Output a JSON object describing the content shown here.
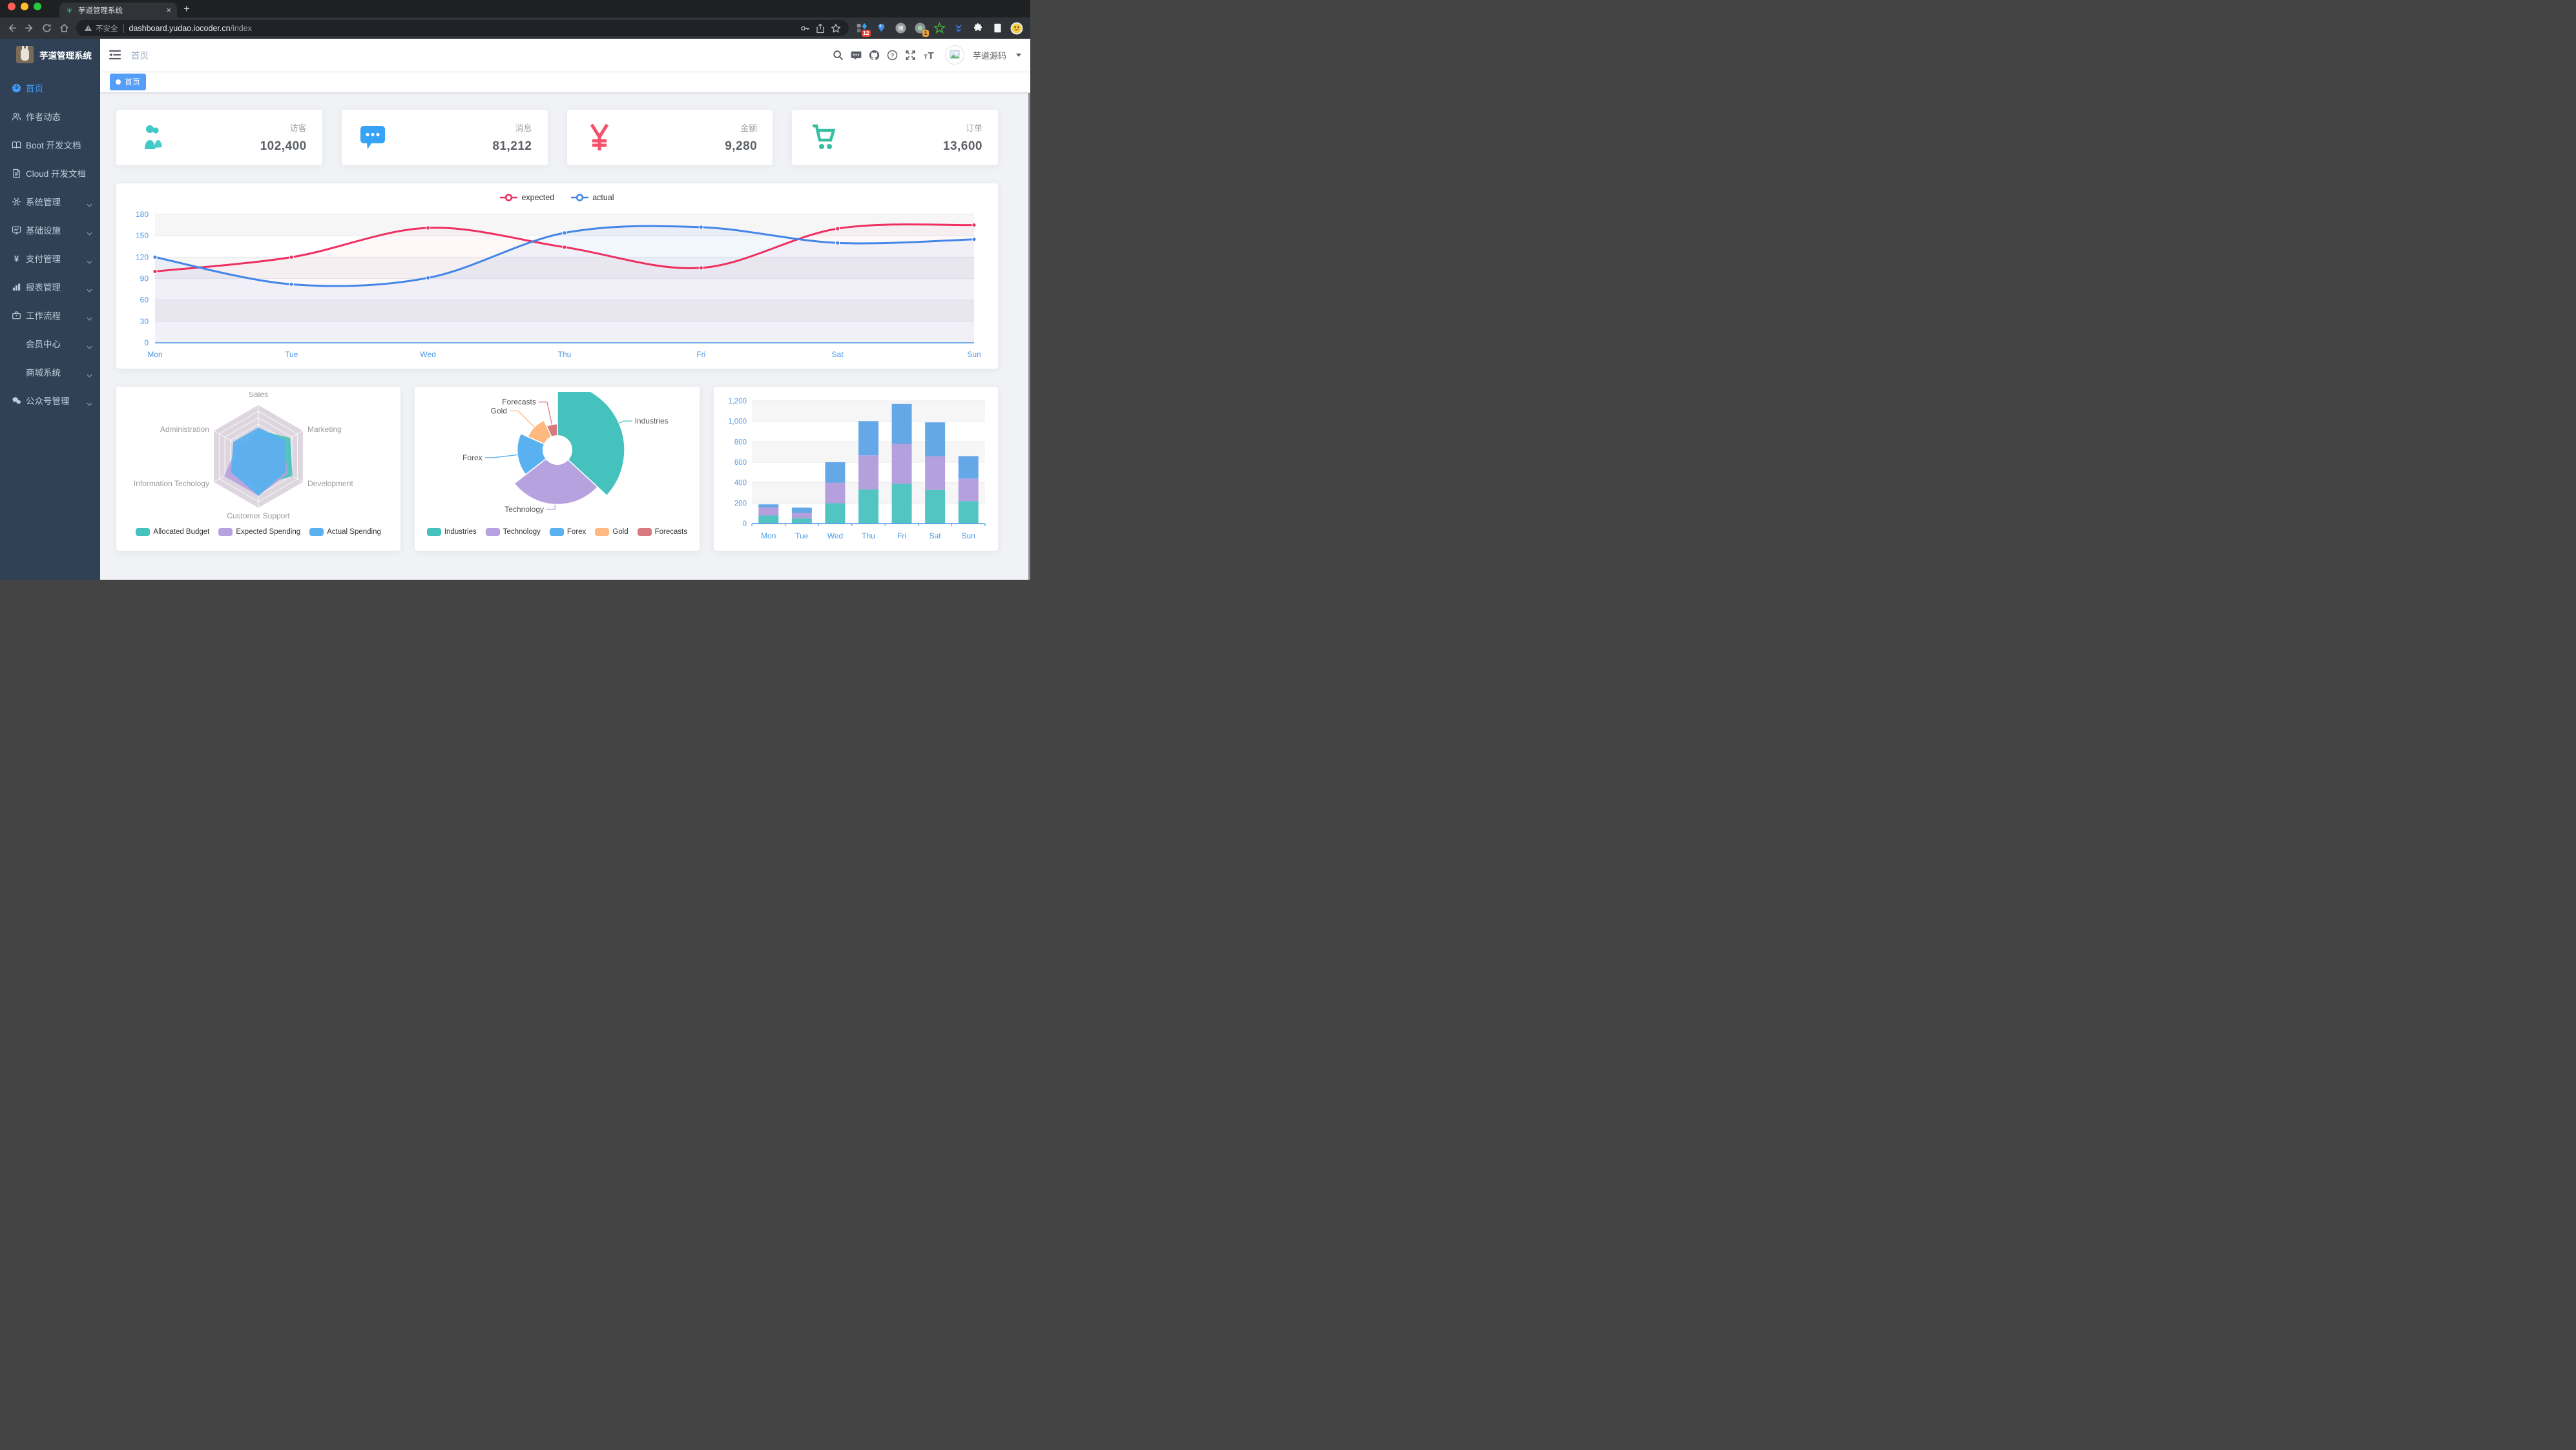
{
  "browser": {
    "tab_title": "芋道管理系统",
    "security_label": "不安全",
    "url_host": "dashboard.yudao.iocoder.cn",
    "url_path": "/index",
    "ext_badge_1": "12",
    "ext_badge_2": "1"
  },
  "sidebar": {
    "logo_title": "芋道管理系统",
    "items": [
      {
        "label": "首页",
        "icon": "dashboard",
        "active": true,
        "arrow": false
      },
      {
        "label": "作者动态",
        "icon": "peoples",
        "active": false,
        "arrow": false
      },
      {
        "label": "Boot 开发文档",
        "icon": "education",
        "active": false,
        "arrow": false
      },
      {
        "label": "Cloud 开发文档",
        "icon": "documentation",
        "active": false,
        "arrow": false
      },
      {
        "label": "系统管理",
        "icon": "gear",
        "active": false,
        "arrow": true
      },
      {
        "label": "基础设施",
        "icon": "monitor",
        "active": false,
        "arrow": true
      },
      {
        "label": "支付管理",
        "icon": "money",
        "active": false,
        "arrow": true
      },
      {
        "label": "报表管理",
        "icon": "chart",
        "active": false,
        "arrow": true
      },
      {
        "label": "工作流程",
        "icon": "briefcase",
        "active": false,
        "arrow": true
      },
      {
        "label": "会员中心",
        "icon": "none",
        "active": false,
        "arrow": true
      },
      {
        "label": "商城系统",
        "icon": "none",
        "active": false,
        "arrow": true
      },
      {
        "label": "公众号管理",
        "icon": "wechat",
        "active": false,
        "arrow": true
      }
    ]
  },
  "navbar": {
    "breadcrumb": "首页",
    "username": "芋道源码",
    "tool_icons": [
      "search",
      "message",
      "github",
      "question",
      "fullscreen",
      "font-size"
    ]
  },
  "tags": {
    "active": "首页"
  },
  "stats": [
    {
      "label": "访客",
      "value": "102,400",
      "icon": "peoples-solid",
      "color": "#40c9c6"
    },
    {
      "label": "消息",
      "value": "81,212",
      "icon": "message-solid",
      "color": "#36a3f7"
    },
    {
      "label": "金额",
      "value": "9,280",
      "icon": "money-solid",
      "color": "#f4516c"
    },
    {
      "label": "订单",
      "value": "13,600",
      "icon": "shopping-solid",
      "color": "#34bfa3"
    }
  ],
  "chart_data": [
    {
      "type": "line",
      "categories": [
        "Mon",
        "Tue",
        "Wed",
        "Thu",
        "Fri",
        "Sat",
        "Sun"
      ],
      "series": [
        {
          "name": "expected",
          "color": "#ee2f5f",
          "values": [
            100,
            120,
            161,
            134,
            105,
            160,
            165
          ]
        },
        {
          "name": "actual",
          "color": "#4486e8",
          "values": [
            120,
            82,
            91,
            154,
            162,
            140,
            145
          ]
        }
      ],
      "ylim": [
        0,
        180
      ],
      "ytick_interval": 30,
      "legend_position": "top",
      "grid": true,
      "axis_label_color": "#4d9ae8"
    },
    {
      "type": "radar",
      "indicators": [
        {
          "name": "Sales",
          "max": 10000
        },
        {
          "name": "Administration",
          "max": 20000
        },
        {
          "name": "Information Techology",
          "max": 20000
        },
        {
          "name": "Customer Support",
          "max": 20000
        },
        {
          "name": "Development",
          "max": 20000
        },
        {
          "name": "Marketing",
          "max": 20000
        }
      ],
      "series": [
        {
          "name": "Allocated Budget",
          "color": "#45c2bd",
          "values": [
            5000,
            7000,
            12000,
            11000,
            15000,
            14000
          ]
        },
        {
          "name": "Expected Spending",
          "color": "#b6a2de",
          "values": [
            4000,
            9000,
            15000,
            15000,
            13000,
            11000
          ]
        },
        {
          "name": "Actual Spending",
          "color": "#5ab1ef",
          "values": [
            5500,
            11000,
            12000,
            15000,
            12000,
            12000
          ]
        }
      ],
      "legend_position": "bottom",
      "ring_color": "rgba(127,95,132,0.26)"
    },
    {
      "type": "pie",
      "rose": true,
      "slices": [
        {
          "name": "Industries",
          "value": 320,
          "color": "#45c2bd"
        },
        {
          "name": "Technology",
          "value": 240,
          "color": "#b6a2de"
        },
        {
          "name": "Forex",
          "value": 149,
          "color": "#5ab1ef"
        },
        {
          "name": "Gold",
          "value": 100,
          "color": "#ffb980"
        },
        {
          "name": "Forecasts",
          "value": 59,
          "color": "#d87a80"
        }
      ],
      "legend_position": "bottom"
    },
    {
      "type": "bar",
      "stacked": true,
      "categories": [
        "Mon",
        "Tue",
        "Wed",
        "Thu",
        "Fri",
        "Sat",
        "Sun"
      ],
      "series": [
        {
          "color": "#52c4c2",
          "values": [
            79,
            52,
            200,
            334,
            390,
            330,
            220
          ]
        },
        {
          "color": "#b3a0dc",
          "values": [
            79,
            52,
            200,
            334,
            390,
            330,
            220
          ]
        },
        {
          "color": "#64a8e8",
          "values": [
            30,
            52,
            200,
            334,
            390,
            330,
            220
          ]
        }
      ],
      "ylim": [
        0,
        1200
      ],
      "ytick_interval": 200,
      "axis_label_color": "#4d9ae8"
    }
  ]
}
